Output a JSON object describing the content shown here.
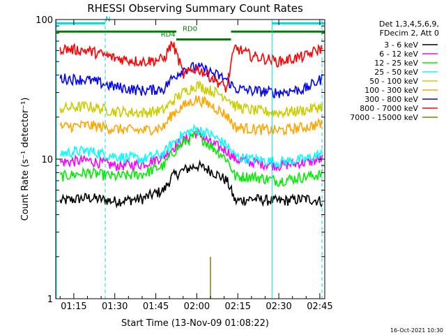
{
  "chart_data": {
    "type": "line",
    "title": "RHESSI Observing Summary Count Rates",
    "xlabel": "Start Time (13-Nov-09 01:08:22)",
    "ylabel": "Count Rate (s⁻¹ detector⁻¹)",
    "yscale": "log",
    "ylim": [
      1,
      100
    ],
    "xlim_minutes": [
      68.4,
      166.8
    ],
    "x_ticks": [
      {
        "label": "01:15",
        "minute": 75
      },
      {
        "label": "01:30",
        "minute": 90
      },
      {
        "label": "01:45",
        "minute": 105
      },
      {
        "label": "02:00",
        "minute": 120
      },
      {
        "label": "02:15",
        "minute": 135
      },
      {
        "label": "02:30",
        "minute": 150
      },
      {
        "label": "02:45",
        "minute": 165
      }
    ],
    "y_ticks": [
      {
        "label": "1",
        "value": 1
      },
      {
        "label": "10",
        "value": 10
      },
      {
        "label": "100",
        "value": 100
      }
    ],
    "legend_header": [
      "Det 1,3,4,5,6,9,",
      "FDecim 2, Att 0"
    ],
    "legend_placement": "right",
    "timestamp": "16-Oct-2021 10:30",
    "annotations": [
      {
        "text": "N",
        "minute": 87.5,
        "value": 94
      },
      {
        "text": "RD4",
        "minute": 109.5,
        "value": 73
      },
      {
        "text": "RD0",
        "minute": 117.5,
        "value": 80
      }
    ],
    "status_bars": [
      {
        "name": "night",
        "color": "#00dddd",
        "start": 68.4,
        "end": 86.5,
        "value": 94
      },
      {
        "name": "night",
        "color": "#00dddd",
        "start": 147.5,
        "end": 166.8,
        "value": 94
      },
      {
        "name": "decimation",
        "color": "#008000",
        "start": 68.4,
        "end": 112.5,
        "value": 82
      },
      {
        "name": "decimation",
        "color": "#008000",
        "start": 112.5,
        "end": 132.5,
        "value": 72
      },
      {
        "name": "decimation",
        "color": "#008000",
        "start": 132.5,
        "end": 166.8,
        "value": 82
      }
    ],
    "vertical_lines": [
      {
        "minute": 68.6,
        "style": "solid",
        "color": "#00dddd"
      },
      {
        "minute": 86.5,
        "style": "dashed",
        "color": "#00dddd"
      },
      {
        "minute": 147.5,
        "style": "solid",
        "color": "#00dddd"
      },
      {
        "minute": 165.8,
        "style": "dashed",
        "color": "#00dddd"
      }
    ],
    "x": [
      70,
      80,
      90,
      100,
      108,
      111,
      115,
      120,
      125,
      131,
      134,
      140,
      150,
      160,
      166
    ],
    "series": [
      {
        "name": "3 - 6 keV",
        "color": "#000000",
        "values": [
          5.0,
          5.3,
          5.0,
          5.2,
          6.0,
          7.5,
          8.3,
          9.0,
          8.3,
          7.0,
          5.0,
          5.2,
          5.0,
          5.2,
          5.0
        ]
      },
      {
        "name": "6 - 12 keV",
        "color": "#ff00ff",
        "values": [
          9.5,
          9.8,
          9.0,
          9.2,
          10.5,
          12.0,
          13.5,
          15.5,
          13.0,
          11.5,
          10.0,
          9.5,
          9.0,
          9.5,
          10.0
        ]
      },
      {
        "name": "12 - 25 keV",
        "color": "#00ee00",
        "values": [
          7.5,
          8.0,
          7.5,
          7.8,
          9.0,
          11.0,
          13.0,
          15.0,
          12.5,
          10.0,
          7.5,
          7.5,
          7.0,
          7.5,
          7.8
        ]
      },
      {
        "name": "25 - 50 keV",
        "color": "#00ffff",
        "values": [
          11.0,
          11.5,
          10.5,
          10.0,
          11.0,
          13.0,
          15.0,
          16.5,
          15.0,
          12.5,
          10.5,
          10.0,
          9.5,
          10.0,
          11.0
        ]
      },
      {
        "name": "50 - 100 keV",
        "color": "#cccc00",
        "values": [
          23.0,
          24.0,
          22.0,
          21.5,
          22.5,
          26.0,
          30.0,
          34.0,
          31.0,
          28.0,
          24.0,
          22.5,
          21.5,
          22.5,
          24.0
        ]
      },
      {
        "name": "100 - 300 keV",
        "color": "#ffa500",
        "values": [
          17.0,
          17.5,
          16.5,
          16.0,
          17.0,
          21.0,
          24.0,
          27.0,
          24.5,
          20.5,
          17.0,
          16.5,
          16.0,
          17.0,
          18.0
        ]
      },
      {
        "name": "300 - 800 keV",
        "color": "#0000ff",
        "values": [
          38.0,
          37.0,
          33.0,
          31.0,
          32.0,
          38.0,
          44.0,
          46.0,
          42.0,
          37.0,
          32.0,
          31.0,
          30.0,
          32.0,
          38.0
        ]
      },
      {
        "name": "800 - 7000 keV",
        "color": "#ff0000",
        "values": [
          62.0,
          60.0,
          53.0,
          50.0,
          52.0,
          68.0,
          40.0,
          45.0,
          39.0,
          32.0,
          63.0,
          55.0,
          50.0,
          55.0,
          63.0
        ]
      },
      {
        "name": "7000 - 15000 keV",
        "color": "#808000",
        "values": [
          0,
          0,
          0,
          0,
          0,
          0,
          0,
          0,
          2.0,
          0,
          0,
          0,
          0,
          0,
          0
        ]
      }
    ]
  }
}
